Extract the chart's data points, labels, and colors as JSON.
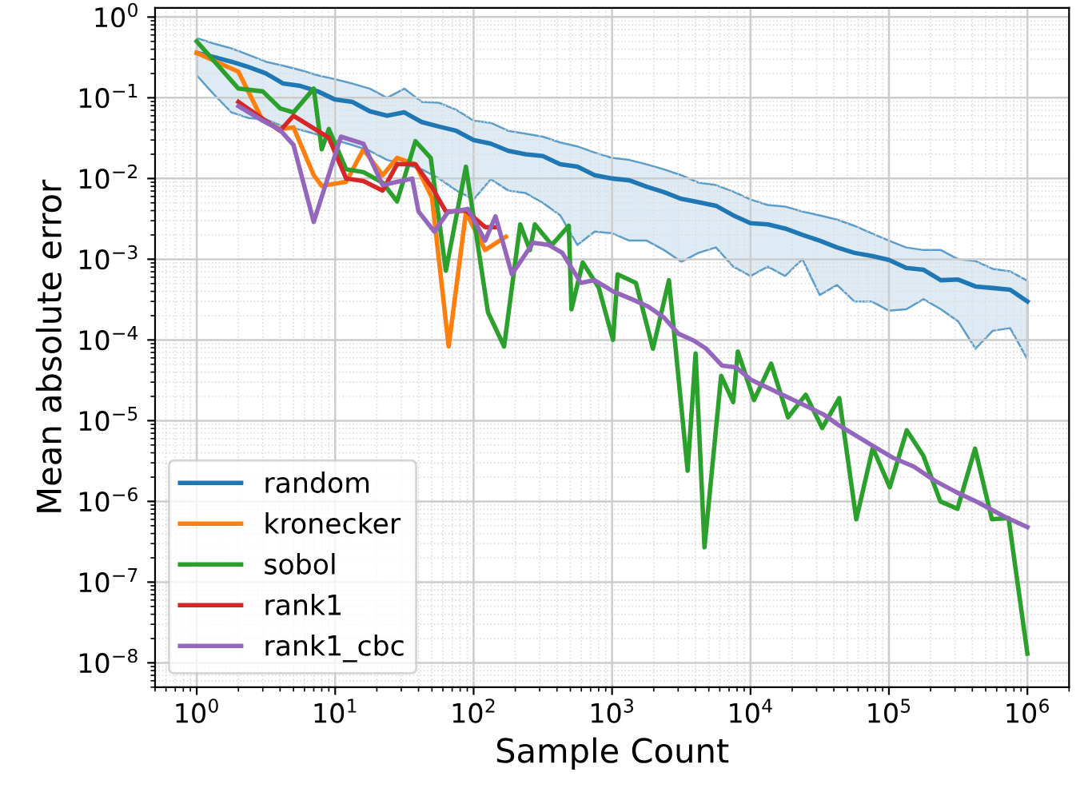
{
  "chart_data": {
    "type": "line",
    "xlabel": "Sample Count",
    "ylabel": "Mean absolute error",
    "log": "xy",
    "grid": true,
    "legend": "bottom left",
    "xlim": [
      0.5,
      2000000
    ],
    "ylim": [
      5e-09,
      1.3
    ],
    "xticks": [
      {
        "value": 1,
        "label": "10$^{0}$"
      },
      {
        "value": 10,
        "label": "10$^{1}$"
      },
      {
        "value": 100,
        "label": "10$^{2}$"
      },
      {
        "value": 1000,
        "label": "10$^{3}$"
      },
      {
        "value": 10000,
        "label": "10$^{4}$"
      },
      {
        "value": 100000,
        "label": "10$^{5}$"
      },
      {
        "value": 1000000,
        "label": "10$^{6}$"
      }
    ],
    "yticks": [
      {
        "value": 1e-08,
        "label": "10$^{−8}$"
      },
      {
        "value": 1e-07,
        "label": "10$^{−7}$"
      },
      {
        "value": 1e-06,
        "label": "10$^{−6}$"
      },
      {
        "value": 1e-05,
        "label": "10$^{−5}$"
      },
      {
        "value": 0.0001,
        "label": "10$^{−4}$"
      },
      {
        "value": 0.001,
        "label": "10$^{−3}$"
      },
      {
        "value": 0.01,
        "label": "10$^{−2}$"
      },
      {
        "value": 0.1,
        "label": "10$^{−1}$"
      },
      {
        "value": 1,
        "label": "10$^{0}$"
      }
    ],
    "series": [
      {
        "name": "random",
        "color": "#1f77b4",
        "x": [
          1,
          1.33,
          1.78,
          2.37,
          3.16,
          4.22,
          5.62,
          7.5,
          10,
          13.3,
          17.8,
          23.7,
          31.6,
          42.2,
          56.2,
          75,
          100,
          133,
          178,
          237,
          316,
          422,
          562,
          750,
          1000,
          1334,
          1778,
          2371,
          3162,
          4217,
          5623,
          7499,
          10000,
          13335,
          17783,
          23714,
          31623,
          42170,
          56234,
          74989,
          100000,
          133352,
          177828,
          237137,
          316228,
          421697,
          562341,
          749894,
          1000000
        ],
        "values": [
          0.36,
          0.32,
          0.28,
          0.24,
          0.2,
          0.15,
          0.14,
          0.12,
          0.095,
          0.089,
          0.068,
          0.06,
          0.066,
          0.05,
          0.044,
          0.039,
          0.03,
          0.027,
          0.022,
          0.02,
          0.019,
          0.015,
          0.014,
          0.011,
          0.01,
          0.0095,
          0.0079,
          0.0068,
          0.0056,
          0.0051,
          0.0046,
          0.0035,
          0.0028,
          0.0027,
          0.0024,
          0.002,
          0.0017,
          0.0014,
          0.0012,
          0.0011,
          0.00098,
          0.00078,
          0.00074,
          0.00055,
          0.00056,
          0.00046,
          0.00044,
          0.00042,
          0.0003
        ],
        "upper": [
          0.55,
          0.47,
          0.41,
          0.34,
          0.28,
          0.25,
          0.22,
          0.19,
          0.17,
          0.15,
          0.13,
          0.1,
          0.13,
          0.089,
          0.087,
          0.071,
          0.052,
          0.049,
          0.039,
          0.036,
          0.033,
          0.028,
          0.025,
          0.021,
          0.018,
          0.017,
          0.015,
          0.013,
          0.011,
          0.0089,
          0.0083,
          0.0069,
          0.0055,
          0.0047,
          0.0045,
          0.0039,
          0.0035,
          0.0031,
          0.0026,
          0.0021,
          0.0017,
          0.0014,
          0.0013,
          0.0013,
          0.001,
          0.00095,
          0.00076,
          0.00071,
          0.00054
        ],
        "lower": [
          0.19,
          0.11,
          0.066,
          0.056,
          0.054,
          0.044,
          0.04,
          0.035,
          0.03,
          0.026,
          0.022,
          0.017,
          0.015,
          0.013,
          0.01,
          0.0071,
          0.0055,
          0.0098,
          0.0071,
          0.0066,
          0.005,
          0.0035,
          0.0015,
          0.0022,
          0.0021,
          0.0017,
          0.0017,
          0.0013,
          0.00093,
          0.0012,
          0.0014,
          0.00081,
          0.00062,
          0.00081,
          0.00062,
          0.001,
          0.00036,
          0.00048,
          0.0003,
          0.0003,
          0.00023,
          0.00024,
          0.00032,
          0.00024,
          0.00017,
          7.8e-05,
          0.00013,
          0.00014,
          5.8e-05
        ]
      },
      {
        "name": "kronecker",
        "color": "#ff7f0e",
        "x": [
          1,
          2,
          3,
          4,
          5,
          7,
          8,
          12,
          16,
          22,
          28,
          38,
          50,
          66,
          88,
          121,
          171
        ],
        "values": [
          0.36,
          0.21,
          0.052,
          0.041,
          0.043,
          0.011,
          0.0081,
          0.0091,
          0.023,
          0.011,
          0.018,
          0.015,
          0.0058,
          8.3e-05,
          0.0038,
          0.0013,
          0.0019
        ]
      },
      {
        "name": "sobol",
        "color": "#2ca02c",
        "x": [
          1,
          2,
          3,
          4,
          5,
          7,
          8,
          9,
          12,
          16,
          22,
          28,
          38,
          49,
          63,
          88,
          127,
          166,
          217,
          255,
          277,
          367,
          487,
          509,
          614,
          800,
          1016,
          1097,
          1486,
          1974,
          2575,
          3513,
          4012,
          4652,
          6134,
          7500,
          8100,
          10600,
          14090,
          18670,
          25050,
          32960,
          43760,
          58080,
          76420,
          101400,
          134500,
          177000,
          235000,
          312600,
          418700,
          554600,
          731000,
          1000000
        ],
        "values": [
          0.5,
          0.13,
          0.12,
          0.074,
          0.066,
          0.13,
          0.023,
          0.041,
          0.013,
          0.012,
          0.0089,
          0.0052,
          0.029,
          0.018,
          0.00072,
          0.014,
          0.00022,
          8.3e-05,
          0.0027,
          0.0013,
          0.0027,
          0.0015,
          0.0026,
          0.00024,
          0.00091,
          0.00045,
          0.0001,
          0.00065,
          0.00051,
          7.8e-05,
          0.00055,
          2.4e-06,
          6.8e-05,
          2.7e-07,
          3.6e-05,
          1.7e-05,
          7.2e-05,
          1.8e-05,
          5.1e-05,
          1.1e-05,
          2.1e-05,
          8.1e-06,
          1.9e-05,
          6e-07,
          4.6e-06,
          1.5e-06,
          7.6e-06,
          3.7e-06,
          1e-06,
          8.1e-07,
          4.5e-06,
          6e-07,
          6.2e-07,
          1.3e-08
        ]
      },
      {
        "name": "rank1",
        "color": "#d62728",
        "x": [
          2,
          4,
          5,
          9,
          12,
          16,
          22,
          28,
          38,
          50,
          63,
          88,
          121,
          144
        ],
        "values": [
          0.089,
          0.039,
          0.06,
          0.032,
          0.01,
          0.0093,
          0.0071,
          0.015,
          0.015,
          0.0078,
          0.0039,
          0.004,
          0.0025,
          0.0025
        ]
      },
      {
        "name": "rank1_cbc",
        "color": "#9467bd",
        "x": [
          2,
          3,
          4,
          5,
          7,
          11,
          16,
          22,
          36,
          40,
          52,
          65,
          91,
          121,
          144,
          189,
          269,
          350,
          437,
          595,
          746,
          1016,
          1389,
          1820,
          2370,
          3000,
          3900,
          4780,
          6250,
          7820,
          10100,
          18030,
          33570,
          43760,
          77700,
          106000,
          151000,
          215000,
          307000,
          436000,
          680000,
          1000000
        ],
        "values": [
          0.079,
          0.052,
          0.04,
          0.026,
          0.0029,
          0.033,
          0.027,
          0.0083,
          0.01,
          0.0039,
          0.0022,
          0.0038,
          0.0042,
          0.0017,
          0.0034,
          0.00065,
          0.0016,
          0.0015,
          0.0012,
          0.00051,
          0.00055,
          0.0004,
          0.00032,
          0.00026,
          0.00019,
          0.00012,
          9.8e-05,
          7.8e-05,
          4.8e-05,
          4.6e-05,
          3.2e-05,
          2e-05,
          1.2e-05,
          8.7e-06,
          4.8e-06,
          3.5e-06,
          2.7e-06,
          1.8e-06,
          1.3e-06,
          9.8e-07,
          6.5e-07,
          4.8e-07
        ]
      }
    ]
  }
}
